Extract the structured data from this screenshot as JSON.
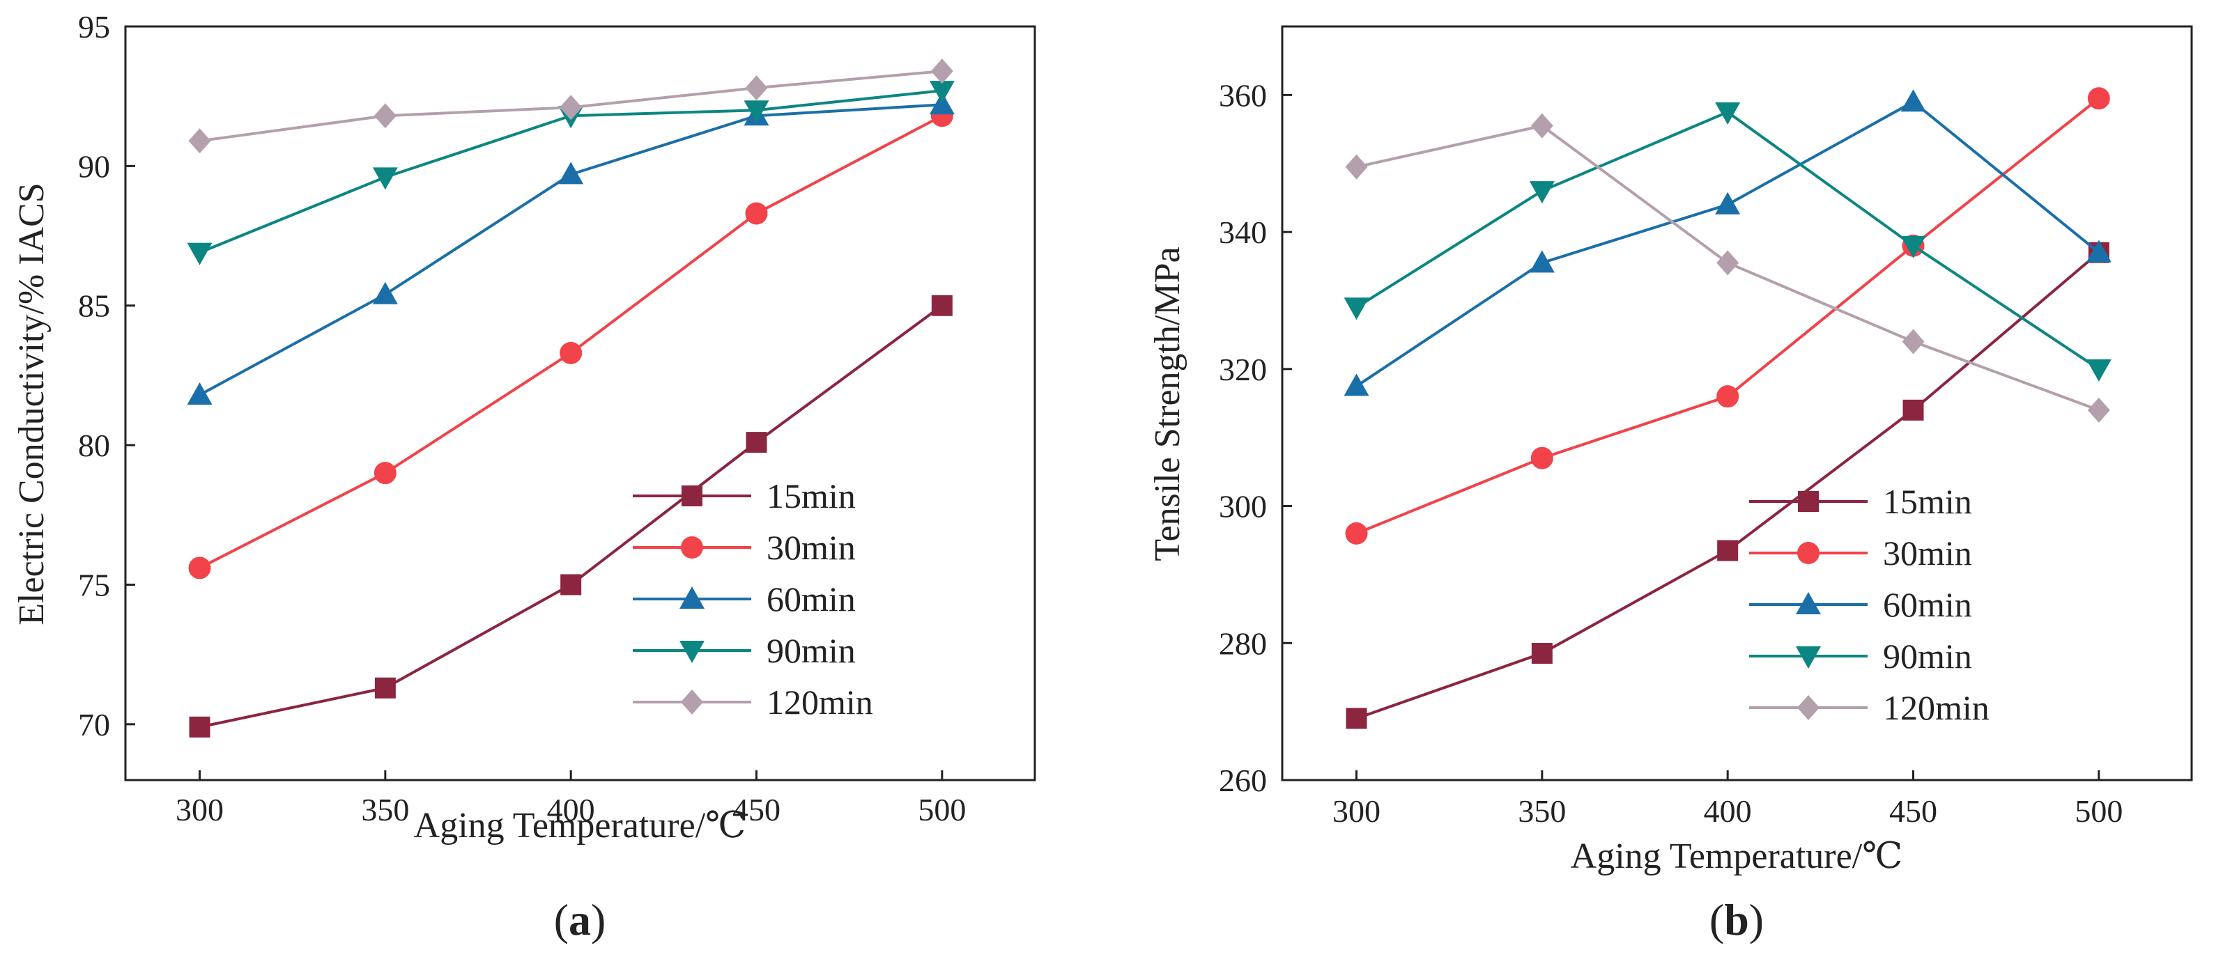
{
  "chart_data": [
    {
      "type": "line",
      "panel_label": "a",
      "xlabel": "Aging Temperature/℃",
      "ylabel": "Electric Conductivity/% IACS",
      "xlim": [
        280,
        525
      ],
      "ylim": [
        68,
        95
      ],
      "x_ticks": [
        300,
        350,
        400,
        450,
        500
      ],
      "y_ticks": [
        70,
        75,
        80,
        85,
        90,
        95
      ],
      "x": [
        300,
        350,
        400,
        450,
        500
      ],
      "grid": false,
      "legend_position": "bottom-right",
      "series": [
        {
          "name": "15min",
          "values": [
            69.9,
            71.3,
            75.0,
            80.1,
            85.0
          ]
        },
        {
          "name": "30min",
          "values": [
            75.6,
            79.0,
            83.3,
            88.3,
            91.8
          ]
        },
        {
          "name": "60min",
          "values": [
            81.8,
            85.4,
            89.7,
            91.8,
            92.2
          ]
        },
        {
          "name": "90min",
          "values": [
            86.9,
            89.6,
            91.8,
            92.0,
            92.7
          ]
        },
        {
          "name": "120min",
          "values": [
            90.9,
            91.8,
            92.1,
            92.8,
            93.4
          ]
        }
      ]
    },
    {
      "type": "line",
      "panel_label": "b",
      "xlabel": "Aging Temperature/℃",
      "ylabel": "Tensile Strength/MPa",
      "xlim": [
        280,
        525
      ],
      "ylim": [
        260,
        370
      ],
      "x_ticks": [
        300,
        350,
        400,
        450,
        500
      ],
      "y_ticks": [
        260,
        280,
        300,
        320,
        340,
        360
      ],
      "x": [
        300,
        350,
        400,
        450,
        500
      ],
      "grid": false,
      "legend_position": "bottom-right",
      "series": [
        {
          "name": "15min",
          "values": [
            269,
            278.5,
            293.5,
            314,
            337
          ]
        },
        {
          "name": "30min",
          "values": [
            296,
            307,
            316,
            338,
            359.5
          ]
        },
        {
          "name": "60min",
          "values": [
            317.5,
            335.5,
            344,
            359,
            337
          ]
        },
        {
          "name": "90min",
          "values": [
            329,
            346,
            357.5,
            338,
            320
          ]
        },
        {
          "name": "120min",
          "values": [
            349.5,
            355.5,
            335.5,
            324,
            314
          ]
        }
      ]
    }
  ],
  "series_styles": [
    {
      "color": "#8b2540",
      "marker": "square"
    },
    {
      "color": "#f2424a",
      "marker": "circle"
    },
    {
      "color": "#1a6fa8",
      "marker": "triangle-up"
    },
    {
      "color": "#0c8682",
      "marker": "triangle-down"
    },
    {
      "color": "#b3a0ac",
      "marker": "diamond"
    }
  ]
}
